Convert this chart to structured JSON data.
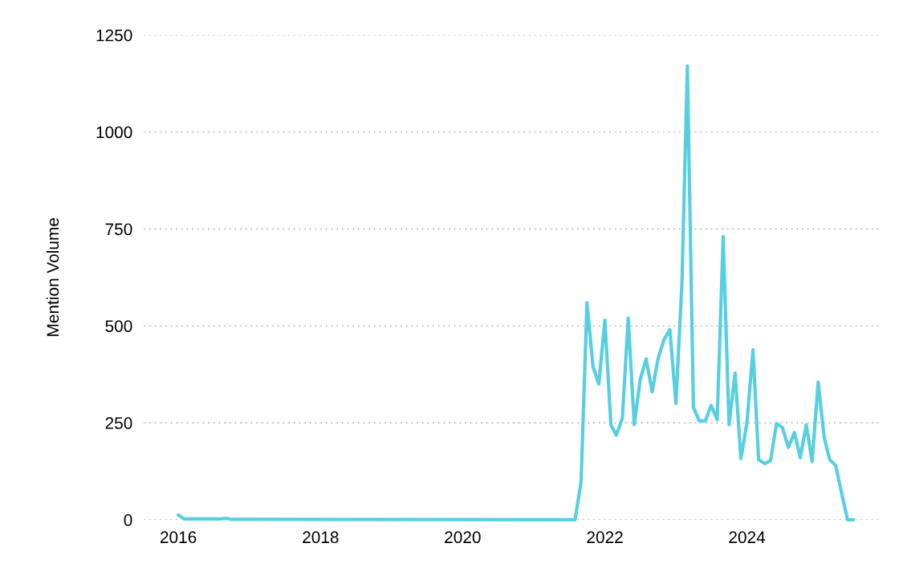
{
  "chart_data": {
    "type": "line",
    "ylabel": "Mention Volume",
    "grid": "y",
    "marker": "none",
    "line_style": "solid",
    "xlim": [
      "2015-07-08",
      "2025-11-20"
    ],
    "ylim": [
      0,
      1250
    ],
    "yticks": [
      0,
      250,
      500,
      750,
      1000,
      1250
    ],
    "xticks": [
      {
        "value": "2016-01-01",
        "label": "2016"
      },
      {
        "value": "2018-01-01",
        "label": "2018"
      },
      {
        "value": "2020-01-01",
        "label": "2020"
      },
      {
        "value": "2022-01-01",
        "label": "2022"
      },
      {
        "value": "2024-01-01",
        "label": "2024"
      }
    ],
    "series": [
      {
        "color": "#56cfe1",
        "x": [
          "2016-01",
          "2016-02",
          "2016-08",
          "2016-09",
          "2016-10",
          "2021-08",
          "2021-09",
          "2021-10",
          "2021-11",
          "2021-12",
          "2022-01",
          "2022-02",
          "2022-03",
          "2022-04",
          "2022-05",
          "2022-06",
          "2022-07",
          "2022-08",
          "2022-09",
          "2022-10",
          "2022-11",
          "2022-12",
          "2023-01",
          "2023-02",
          "2023-03",
          "2023-04",
          "2023-05",
          "2023-06",
          "2023-07",
          "2023-08",
          "2023-09",
          "2023-10",
          "2023-11",
          "2023-12",
          "2024-01",
          "2024-02",
          "2024-03",
          "2024-04",
          "2024-05",
          "2024-06",
          "2024-07",
          "2024-08",
          "2024-09",
          "2024-10",
          "2024-11",
          "2024-12",
          "2025-01",
          "2025-02",
          "2025-03",
          "2025-04",
          "2025-05",
          "2025-06",
          "2025-07"
        ],
        "values": [
          12,
          2,
          2,
          4,
          1,
          0,
          100,
          560,
          395,
          350,
          515,
          245,
          218,
          262,
          520,
          245,
          360,
          415,
          330,
          415,
          465,
          490,
          300,
          610,
          1170,
          290,
          255,
          255,
          295,
          258,
          730,
          245,
          378,
          158,
          250,
          438,
          155,
          145,
          152,
          248,
          238,
          187,
          225,
          160,
          245,
          150,
          355,
          212,
          155,
          140,
          70,
          0,
          0
        ]
      }
    ]
  }
}
